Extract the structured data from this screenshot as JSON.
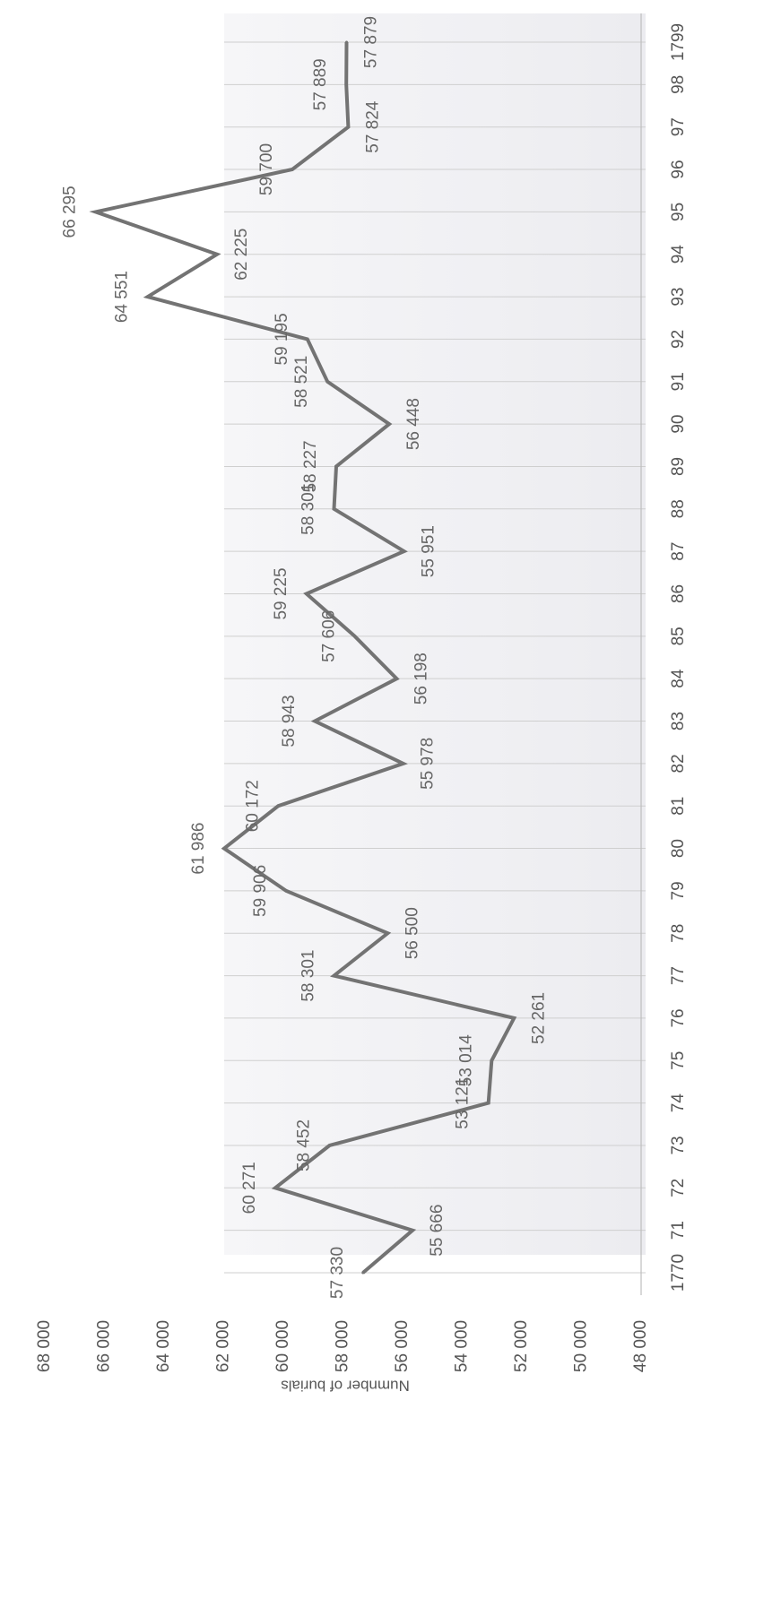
{
  "chart_data": {
    "type": "line",
    "orientation": "rotated-90",
    "ylabel": "Numnber of burials",
    "xlabel": "",
    "title": "",
    "ylim": [
      48000,
      68000
    ],
    "yticks": [
      "48 000",
      "50 000",
      "52 000",
      "54 000",
      "56 000",
      "58 000",
      "60 000",
      "62 000",
      "64 000",
      "66 000",
      "68 000"
    ],
    "ytick_values": [
      48000,
      50000,
      52000,
      54000,
      56000,
      58000,
      60000,
      62000,
      64000,
      66000,
      68000
    ],
    "categories": [
      "1770",
      "71",
      "72",
      "73",
      "74",
      "75",
      "76",
      "77",
      "78",
      "79",
      "80",
      "81",
      "82",
      "83",
      "84",
      "85",
      "86",
      "87",
      "88",
      "89",
      "90",
      "91",
      "92",
      "93",
      "94",
      "95",
      "96",
      "97",
      "98",
      "1799"
    ],
    "values": [
      57330,
      55666,
      60271,
      58452,
      53121,
      53014,
      52261,
      58301,
      56500,
      59906,
      61986,
      60172,
      55978,
      58943,
      56198,
      57606,
      59225,
      55951,
      58301,
      58227,
      56448,
      58521,
      59195,
      64551,
      62225,
      66295,
      59700,
      57824,
      57889,
      57879
    ],
    "data_labels": [
      "57 330",
      "55 666",
      "60 271",
      "58 452",
      "53 121",
      "53 014",
      "52 261",
      "58 301",
      "56 500",
      "59 906",
      "61 986",
      "60 172",
      "55 978",
      "58 943",
      "56 198",
      "57 606",
      "59 225",
      "55 951",
      "58 301",
      "58 227",
      "56 448",
      "58 521",
      "59 195",
      "64 551",
      "62 225",
      "66 295",
      "59 700",
      "57 824",
      "57 889",
      "57 879"
    ],
    "grid": true,
    "line_color": "#737373"
  }
}
